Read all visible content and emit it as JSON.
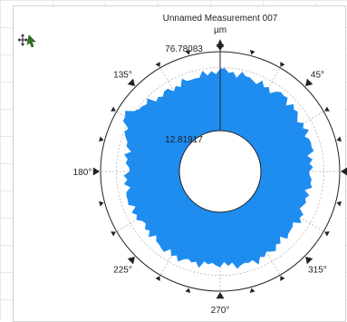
{
  "chart": {
    "title": "Unnamed Measurement 007",
    "unit": "µm",
    "max_label": "76.78083",
    "center_label": "12.81917",
    "angle_labels": [
      {
        "text": "45°",
        "deg": 45
      },
      {
        "text": "135°",
        "deg": 135
      },
      {
        "text": "180°",
        "deg": 180
      },
      {
        "text": "225°",
        "deg": 225
      },
      {
        "text": "270°",
        "deg": 270
      },
      {
        "text": "315°",
        "deg": 315
      }
    ],
    "colors": {
      "fill": "#1f8cf0",
      "axis": "#222222",
      "grid": "#b5b5b5"
    }
  },
  "chart_data": {
    "type": "polar-area",
    "title": "Unnamed Measurement 007",
    "unit": "µm",
    "r_range": [
      12.81917,
      76.78083
    ],
    "profile": [
      {
        "angle": 0,
        "r": 52
      },
      {
        "angle": 10,
        "r": 55
      },
      {
        "angle": 20,
        "r": 57
      },
      {
        "angle": 30,
        "r": 56
      },
      {
        "angle": 40,
        "r": 58
      },
      {
        "angle": 50,
        "r": 60
      },
      {
        "angle": 60,
        "r": 57
      },
      {
        "angle": 70,
        "r": 59
      },
      {
        "angle": 80,
        "r": 60
      },
      {
        "angle": 90,
        "r": 62
      },
      {
        "angle": 100,
        "r": 59
      },
      {
        "angle": 110,
        "r": 58
      },
      {
        "angle": 120,
        "r": 57
      },
      {
        "angle": 130,
        "r": 58
      },
      {
        "angle": 140,
        "r": 62
      },
      {
        "angle": 150,
        "r": 70
      },
      {
        "angle": 160,
        "r": 60
      },
      {
        "angle": 170,
        "r": 56
      },
      {
        "angle": 180,
        "r": 55
      },
      {
        "angle": 190,
        "r": 57
      },
      {
        "angle": 200,
        "r": 58
      },
      {
        "angle": 210,
        "r": 56
      },
      {
        "angle": 220,
        "r": 55
      },
      {
        "angle": 230,
        "r": 57
      },
      {
        "angle": 240,
        "r": 58
      },
      {
        "angle": 250,
        "r": 57
      },
      {
        "angle": 260,
        "r": 56
      },
      {
        "angle": 270,
        "r": 55
      },
      {
        "angle": 280,
        "r": 57
      },
      {
        "angle": 290,
        "r": 58
      },
      {
        "angle": 300,
        "r": 57
      },
      {
        "angle": 310,
        "r": 55
      },
      {
        "angle": 320,
        "r": 54
      },
      {
        "angle": 330,
        "r": 55
      },
      {
        "angle": 340,
        "r": 52
      },
      {
        "angle": 350,
        "r": 54
      }
    ]
  }
}
